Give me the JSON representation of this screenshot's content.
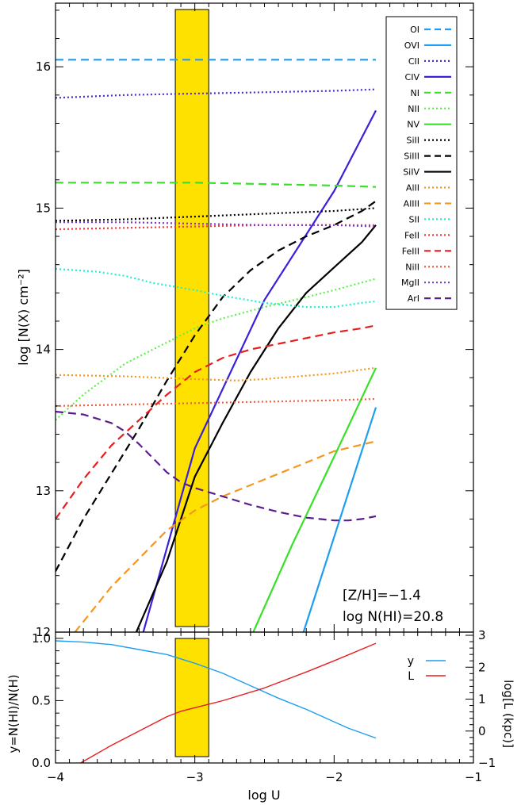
{
  "chart_data": [
    {
      "type": "line",
      "panel": "top",
      "xlabel": "",
      "ylabel": "log [N(X) cm⁻²]",
      "xlim": [
        -4,
        -1
      ],
      "ylim": [
        12,
        16.45
      ],
      "yticks": [
        "12",
        "13",
        "14",
        "15",
        "16"
      ],
      "highlight_band": {
        "x": [
          -3.14,
          -2.9
        ],
        "color": "#FFE100"
      },
      "annotations": [
        "[Z/H]=−1.4",
        "log N(HI)=20.8"
      ],
      "legend_position": "top-right",
      "series": [
        {
          "name": "OI",
          "color": "#1E9EF0",
          "style": "dashed",
          "x": [
            -4.0,
            -1.7
          ],
          "y": [
            16.05,
            16.05
          ]
        },
        {
          "name": "OVI",
          "color": "#1E9EF0",
          "style": "solid",
          "x": [
            -2.22,
            -1.7
          ],
          "y": [
            12.0,
            13.59
          ]
        },
        {
          "name": "CII",
          "color": "#4A2FD0",
          "style": "dotted",
          "x": [
            -4.0,
            -3.5,
            -3.0,
            -2.5,
            -2.0,
            -1.7
          ],
          "y": [
            15.78,
            15.8,
            15.81,
            15.82,
            15.83,
            15.84
          ]
        },
        {
          "name": "CIV",
          "color": "#3A20D8",
          "style": "solid",
          "x": [
            -3.37,
            -3.0,
            -2.5,
            -2.0,
            -1.7
          ],
          "y": [
            12.0,
            13.3,
            14.35,
            15.12,
            15.69
          ]
        },
        {
          "name": "NI",
          "color": "#38E028",
          "style": "dashed",
          "x": [
            -4.0,
            -3.0,
            -2.0,
            -1.7
          ],
          "y": [
            15.18,
            15.18,
            15.16,
            15.15
          ]
        },
        {
          "name": "NII",
          "color": "#5CF048",
          "style": "dotted",
          "x": [
            -4.0,
            -3.8,
            -3.5,
            -3.2,
            -3.0,
            -2.8,
            -2.5,
            -2.2,
            -2.0,
            -1.7
          ],
          "y": [
            13.5,
            13.68,
            13.9,
            14.05,
            14.15,
            14.22,
            14.3,
            14.37,
            14.42,
            14.5
          ]
        },
        {
          "name": "NV",
          "color": "#38E028",
          "style": "solid",
          "x": [
            -2.58,
            -2.3,
            -2.0,
            -1.7
          ],
          "y": [
            12.0,
            12.62,
            13.24,
            13.87
          ]
        },
        {
          "name": "SiII",
          "color": "#000000",
          "style": "dotted",
          "x": [
            -4.0,
            -3.5,
            -3.0,
            -2.5,
            -2.0,
            -1.7
          ],
          "y": [
            14.91,
            14.92,
            14.94,
            14.96,
            14.98,
            15.0
          ]
        },
        {
          "name": "SiIII",
          "color": "#000000",
          "style": "dashed",
          "x": [
            -4.0,
            -3.8,
            -3.6,
            -3.4,
            -3.2,
            -3.0,
            -2.8,
            -2.6,
            -2.4,
            -2.2,
            -2.0,
            -1.8,
            -1.7
          ],
          "y": [
            12.43,
            12.8,
            13.12,
            13.44,
            13.78,
            14.1,
            14.37,
            14.56,
            14.7,
            14.8,
            14.88,
            14.98,
            15.05
          ]
        },
        {
          "name": "SiIV",
          "color": "#000000",
          "style": "solid",
          "x": [
            -3.42,
            -3.2,
            -3.0,
            -2.8,
            -2.6,
            -2.4,
            -2.2,
            -2.0,
            -1.8,
            -1.7
          ],
          "y": [
            12.0,
            12.5,
            13.1,
            13.48,
            13.84,
            14.15,
            14.4,
            14.58,
            14.76,
            14.88
          ]
        },
        {
          "name": "AlII",
          "color": "#F5961E",
          "style": "dotted",
          "x": [
            -4.0,
            -3.5,
            -3.0,
            -2.7,
            -2.5,
            -2.0,
            -1.7
          ],
          "y": [
            13.82,
            13.81,
            13.79,
            13.78,
            13.79,
            13.83,
            13.87
          ]
        },
        {
          "name": "AlIII",
          "color": "#F5961E",
          "style": "dashed",
          "x": [
            -3.86,
            -3.6,
            -3.4,
            -3.2,
            -3.0,
            -2.8,
            -2.5,
            -2.2,
            -2.0,
            -1.7
          ],
          "y": [
            12.0,
            12.32,
            12.52,
            12.72,
            12.86,
            12.96,
            13.08,
            13.2,
            13.28,
            13.35
          ]
        },
        {
          "name": "SII",
          "color": "#1EF0D2",
          "style": "dotted",
          "x": [
            -4.0,
            -3.7,
            -3.5,
            -3.3,
            -3.0,
            -2.8,
            -2.5,
            -2.2,
            -2.0,
            -1.8,
            -1.7
          ],
          "y": [
            14.57,
            14.55,
            14.52,
            14.47,
            14.42,
            14.38,
            14.33,
            14.3,
            14.3,
            14.33,
            14.34
          ]
        },
        {
          "name": "FeII",
          "color": "#F03C3C",
          "style": "dotted",
          "x": [
            -4.0,
            -3.5,
            -3.0,
            -2.5,
            -2.0,
            -1.7
          ],
          "y": [
            14.85,
            14.86,
            14.87,
            14.88,
            14.88,
            14.88
          ]
        },
        {
          "name": "FeIII",
          "color": "#E81E1E",
          "style": "dashed",
          "x": [
            -4.0,
            -3.8,
            -3.6,
            -3.4,
            -3.2,
            -3.0,
            -2.8,
            -2.6,
            -2.4,
            -2.2,
            -2.0,
            -1.8,
            -1.7
          ],
          "y": [
            12.8,
            13.08,
            13.32,
            13.5,
            13.68,
            13.84,
            13.94,
            14.0,
            14.04,
            14.08,
            14.12,
            14.15,
            14.17
          ]
        },
        {
          "name": "NiII",
          "color": "#F0603C",
          "style": "dotted",
          "x": [
            -4.0,
            -3.5,
            -3.0,
            -2.5,
            -2.0,
            -1.7
          ],
          "y": [
            13.6,
            13.61,
            13.62,
            13.63,
            13.64,
            13.65
          ]
        },
        {
          "name": "MgII",
          "color": "#7A38C8",
          "style": "dotted",
          "x": [
            -4.0,
            -3.5,
            -3.0,
            -2.5,
            -2.0,
            -1.7
          ],
          "y": [
            14.9,
            14.9,
            14.89,
            14.88,
            14.88,
            14.87
          ]
        },
        {
          "name": "ArI",
          "color": "#5A1E8C",
          "style": "dashed",
          "x": [
            -4.0,
            -3.8,
            -3.6,
            -3.5,
            -3.4,
            -3.3,
            -3.2,
            -3.1,
            -3.0,
            -2.8,
            -2.6,
            -2.4,
            -2.2,
            -2.0,
            -1.9,
            -1.8,
            -1.7
          ],
          "y": [
            13.56,
            13.54,
            13.48,
            13.42,
            13.33,
            13.23,
            13.13,
            13.06,
            13.02,
            12.96,
            12.9,
            12.85,
            12.81,
            12.79,
            12.79,
            12.8,
            12.82
          ]
        }
      ]
    },
    {
      "type": "line",
      "panel": "bottom",
      "xlabel": "log U",
      "ylabel": "y=N(HI)/N(H)",
      "ylabel_right": "log[L (kpc)]",
      "xlim": [
        -4,
        -1
      ],
      "xticks": [
        "−4",
        "−3",
        "−2",
        "−1"
      ],
      "ylim": [
        0,
        1.05
      ],
      "yticks": [
        "0.0",
        "0.5",
        "1.0"
      ],
      "ylim_right": [
        -1,
        3.1
      ],
      "yticks_right": [
        "−1",
        "0",
        "1",
        "2",
        "3"
      ],
      "highlight_band": {
        "x": [
          -3.14,
          -2.9
        ],
        "color": "#FFE100"
      },
      "legend_position": "top-right",
      "series": [
        {
          "name": "y",
          "axis": "left",
          "color": "#1E9EF0",
          "style": "solid",
          "x": [
            -4.0,
            -3.8,
            -3.6,
            -3.4,
            -3.2,
            -3.0,
            -2.8,
            -2.6,
            -2.4,
            -2.2,
            -2.0,
            -1.9,
            -1.7
          ],
          "y": [
            0.98,
            0.97,
            0.95,
            0.91,
            0.87,
            0.8,
            0.72,
            0.62,
            0.52,
            0.43,
            0.33,
            0.28,
            0.2
          ]
        },
        {
          "name": "L",
          "axis": "right",
          "color": "#E81E1E",
          "style": "solid",
          "x": [
            -3.82,
            -3.6,
            -3.4,
            -3.2,
            -3.1,
            -2.8,
            -2.5,
            -2.2,
            -2.0,
            -1.7
          ],
          "y": [
            -1.0,
            -0.45,
            0.0,
            0.45,
            0.62,
            0.95,
            1.35,
            1.85,
            2.2,
            2.75
          ]
        }
      ]
    }
  ]
}
